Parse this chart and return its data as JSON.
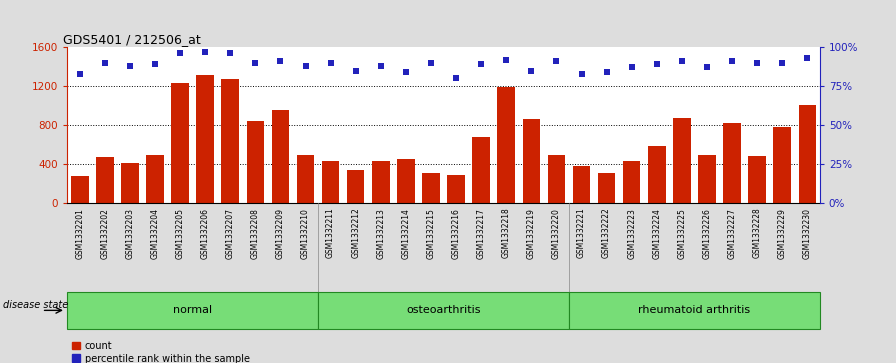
{
  "title": "GDS5401 / 212506_at",
  "categories": [
    "GSM1332201",
    "GSM1332202",
    "GSM1332203",
    "GSM1332204",
    "GSM1332205",
    "GSM1332206",
    "GSM1332207",
    "GSM1332208",
    "GSM1332209",
    "GSM1332210",
    "GSM1332211",
    "GSM1332212",
    "GSM1332213",
    "GSM1332214",
    "GSM1332215",
    "GSM1332216",
    "GSM1332217",
    "GSM1332218",
    "GSM1332219",
    "GSM1332220",
    "GSM1332221",
    "GSM1332222",
    "GSM1332223",
    "GSM1332224",
    "GSM1332225",
    "GSM1332226",
    "GSM1332227",
    "GSM1332228",
    "GSM1332229",
    "GSM1332230"
  ],
  "bar_values": [
    280,
    470,
    415,
    490,
    1230,
    1310,
    1270,
    840,
    960,
    500,
    430,
    340,
    430,
    450,
    310,
    290,
    680,
    1190,
    860,
    490,
    380,
    310,
    430,
    590,
    870,
    490,
    820,
    480,
    780,
    1010
  ],
  "percentile_values": [
    83,
    90,
    88,
    89,
    96,
    97,
    96,
    90,
    91,
    88,
    90,
    85,
    88,
    84,
    90,
    80,
    89,
    92,
    85,
    91,
    83,
    84,
    87,
    89,
    91,
    87,
    91,
    90,
    90,
    93
  ],
  "bar_color": "#CC2200",
  "dot_color": "#2222BB",
  "background_color": "#DDDDDD",
  "plot_bg_color": "#FFFFFF",
  "xtick_bg_color": "#C8C8C8",
  "groups": [
    {
      "label": "normal",
      "start": 0,
      "end": 10
    },
    {
      "label": "osteoarthritis",
      "start": 10,
      "end": 20
    },
    {
      "label": "rheumatoid arthritis",
      "start": 20,
      "end": 30
    }
  ],
  "group_color": "#77DD77",
  "group_border_color": "#228822",
  "ylim_left": [
    0,
    1600
  ],
  "ylim_right": [
    0,
    100
  ],
  "yticks_left": [
    0,
    400,
    800,
    1200,
    1600
  ],
  "yticks_right": [
    0,
    25,
    50,
    75,
    100
  ],
  "disease_state_label": "disease state"
}
